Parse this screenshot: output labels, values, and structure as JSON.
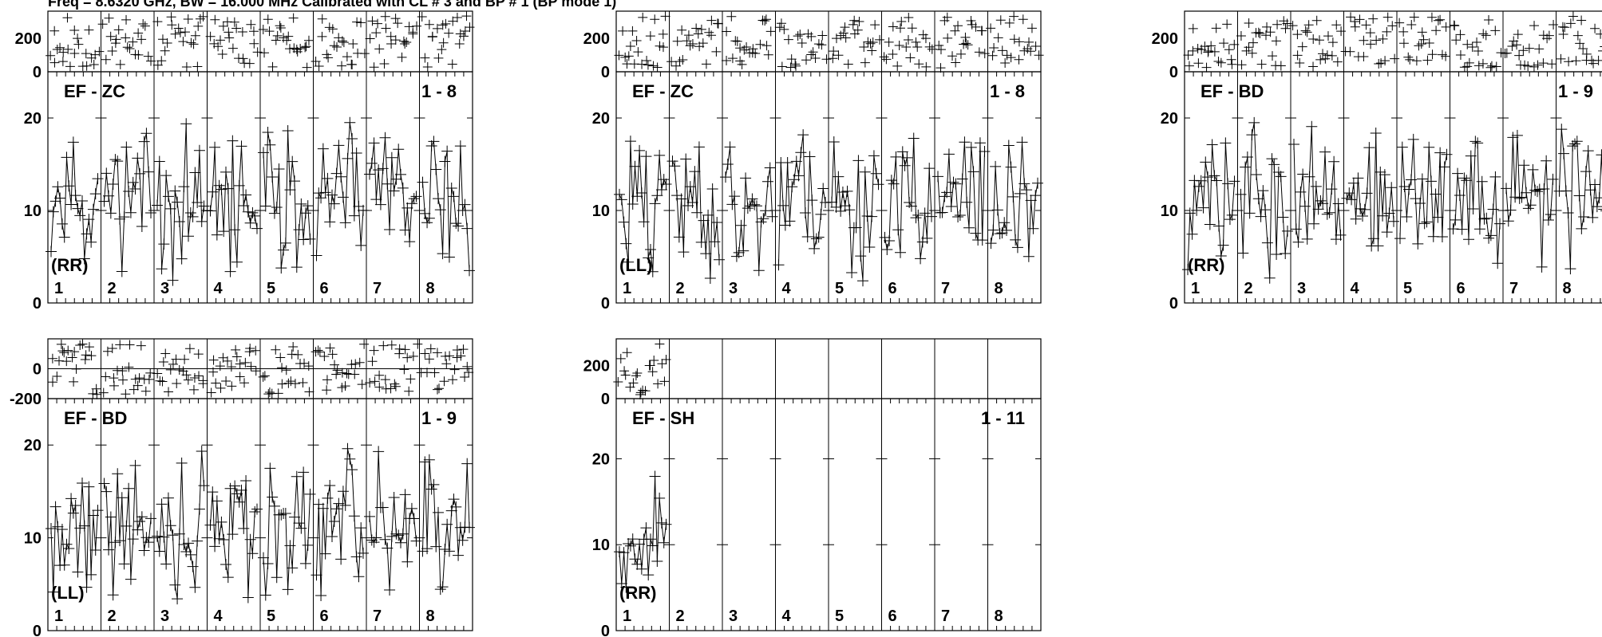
{
  "header": "Freq = 8.6320 GHz, BW = 16.000 MHz Calibrated with CL # 3 and BP # 1 (BP mode 1)",
  "style": {
    "line_color": "#000000",
    "marker": "plus",
    "background": "#ffffff"
  },
  "panels": [
    {
      "title": "EF - ZC",
      "range": "1 - 8",
      "pol": "(RR)",
      "antennas": [
        "1",
        "2",
        "3",
        "4",
        "5",
        "6",
        "7",
        "8"
      ],
      "active_antennas": 8,
      "phase_axis": {
        "ticks": [
          "0",
          "200"
        ],
        "ylim": [
          0,
          360
        ]
      },
      "amp_axis": {
        "ticks": [
          "0",
          "10",
          "20"
        ],
        "ylim": [
          0,
          25
        ]
      },
      "seed": 11
    },
    {
      "title": "EF - ZC",
      "range": "1 - 8",
      "pol": "(LL)",
      "antennas": [
        "1",
        "2",
        "3",
        "4",
        "5",
        "6",
        "7",
        "8"
      ],
      "active_antennas": 8,
      "phase_axis": {
        "ticks": [
          "0",
          "200"
        ],
        "ylim": [
          0,
          360
        ]
      },
      "amp_axis": {
        "ticks": [
          "0",
          "10",
          "20"
        ],
        "ylim": [
          0,
          25
        ]
      },
      "seed": 23
    },
    {
      "title": "EF - BD",
      "range": "1 - 9",
      "pol": "(RR)",
      "antennas": [
        "1",
        "2",
        "3",
        "4",
        "5",
        "6",
        "7",
        "8"
      ],
      "active_antennas": 8,
      "phase_axis": {
        "ticks": [
          "0",
          "200"
        ],
        "ylim": [
          0,
          360
        ]
      },
      "amp_axis": {
        "ticks": [
          "0",
          "10",
          "20"
        ],
        "ylim": [
          0,
          25
        ]
      },
      "seed": 37
    },
    {
      "title": "EF - BD",
      "range": "1 - 9",
      "pol": "(LL)",
      "antennas": [
        "1",
        "2",
        "3",
        "4",
        "5",
        "6",
        "7",
        "8"
      ],
      "active_antennas": 8,
      "phase_axis": {
        "ticks": [
          "-200",
          "0"
        ],
        "ylim": [
          -200,
          200
        ]
      },
      "amp_axis": {
        "ticks": [
          "0",
          "10",
          "20"
        ],
        "ylim": [
          0,
          25
        ]
      },
      "seed": 41
    },
    {
      "title": "EF - SH",
      "range": "1 - 11",
      "pol": "(RR)",
      "antennas": [
        "1",
        "2",
        "3",
        "4",
        "5",
        "6",
        "7",
        "8"
      ],
      "active_antennas": 1,
      "phase_axis": {
        "ticks": [
          "0",
          "200"
        ],
        "ylim": [
          0,
          360
        ]
      },
      "amp_axis": {
        "ticks": [
          "0",
          "10",
          "20"
        ],
        "ylim": [
          0,
          27
        ]
      },
      "seed": 53
    }
  ],
  "chart_data": [
    {
      "type": "scatter",
      "title": "EF - ZC",
      "series": [
        {
          "name": "(RR)",
          "values": []
        }
      ],
      "note": ""
    },
    {
      "type": "scatter",
      "title": "EF - ZC",
      "series": [
        {
          "name": "(LL)",
          "values": []
        }
      ],
      "note": ""
    },
    {
      "type": "scatter",
      "title": "EF - BD",
      "series": [
        {
          "name": "(RR)",
          "values": []
        }
      ],
      "note": ""
    },
    {
      "type": "scatter",
      "title": "EF - BD",
      "series": [
        {
          "name": "(LL)",
          "values": []
        }
      ],
      "note": ""
    },
    {
      "type": "scatter",
      "title": "EF - SH",
      "series": [
        {
          "name": "(RR)",
          "values": []
        }
      ],
      "note": ""
    }
  ]
}
